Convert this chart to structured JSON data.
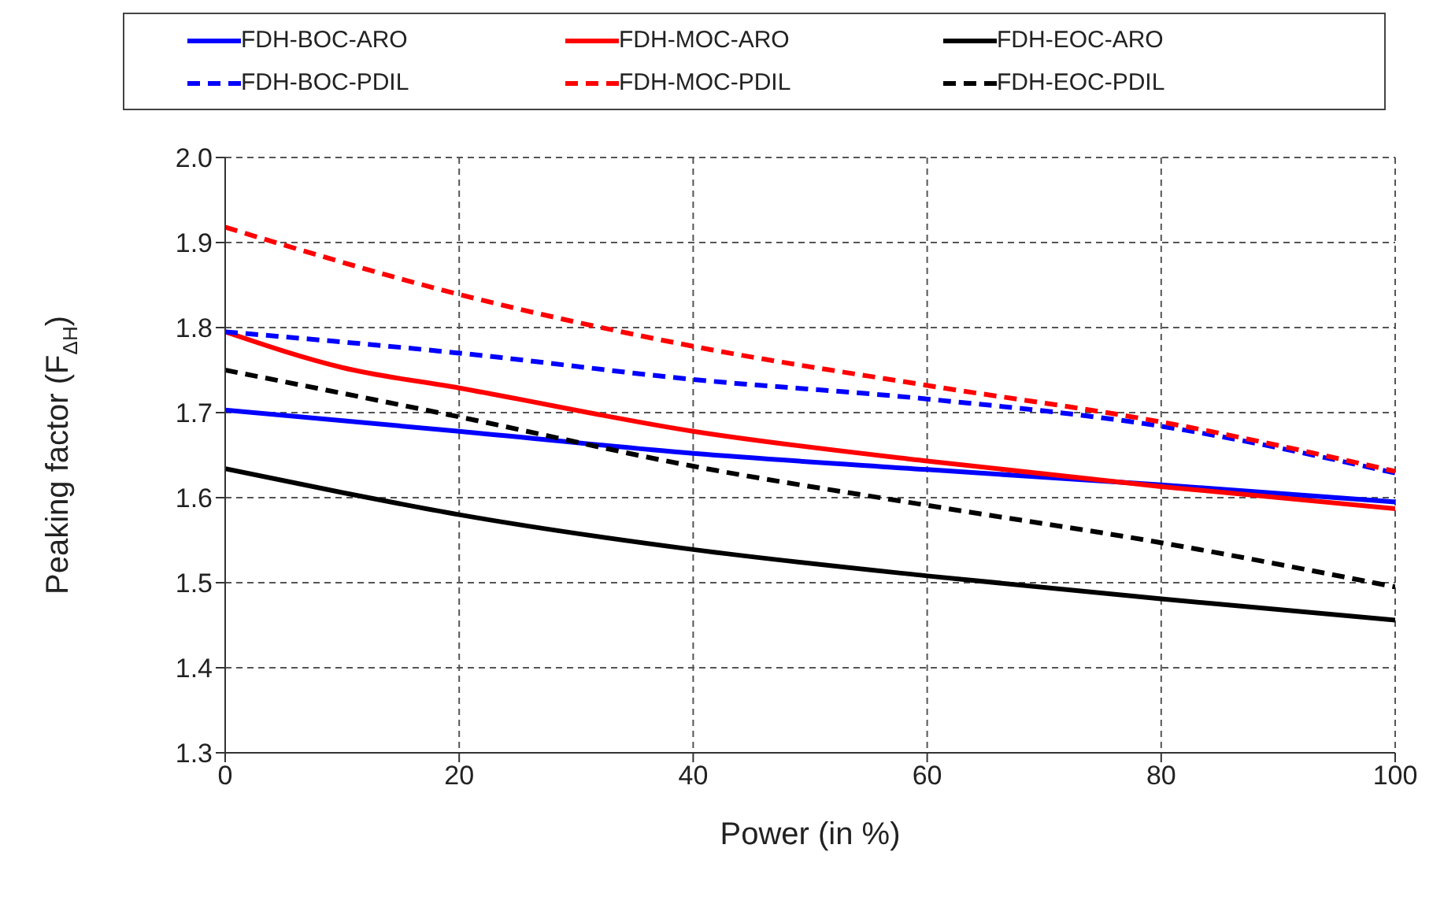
{
  "chart_data": {
    "type": "line",
    "xlabel": "Power (in %)",
    "ylabel": "Peaking factor (F$_{ΔH}$)",
    "xlim": [
      0,
      100
    ],
    "xticks": [
      0,
      20,
      40,
      60,
      80,
      100
    ],
    "ylim": [
      1.3,
      2.0
    ],
    "yticks": [
      1.3,
      1.4,
      1.5,
      1.6,
      1.7,
      1.8,
      1.9,
      {
        "value": 2,
        "label": "2.0"
      }
    ],
    "grid": true,
    "legend": "top",
    "marker": "none",
    "series": [
      {
        "name": "FDH-BOC-ARO",
        "color": "#0000ff",
        "line_style": "solid",
        "x": [
          0,
          20,
          40,
          60,
          80,
          100
        ],
        "values": [
          1.703,
          1.678,
          1.652,
          1.633,
          1.615,
          1.595
        ]
      },
      {
        "name": "FDH-MOC-ARO",
        "color": "#ff0000",
        "line_style": "solid",
        "x": [
          0,
          10,
          20,
          40,
          60,
          80,
          100
        ],
        "values": [
          1.795,
          1.753,
          1.729,
          1.678,
          1.643,
          1.613,
          1.587
        ]
      },
      {
        "name": "FDH-EOC-ARO",
        "color": "#000000",
        "line_style": "solid",
        "x": [
          0,
          10,
          20,
          40,
          60,
          80,
          100
        ],
        "values": [
          1.634,
          1.606,
          1.58,
          1.539,
          1.508,
          1.481,
          1.456
        ]
      },
      {
        "name": "FDH-BOC-PDIL",
        "color": "#0000ff",
        "line_style": "dashed",
        "x": [
          0,
          20,
          40,
          60,
          80,
          100
        ],
        "values": [
          1.795,
          1.77,
          1.739,
          1.716,
          1.684,
          1.629
        ]
      },
      {
        "name": "FDH-MOC-PDIL",
        "color": "#ff0000",
        "line_style": "dashed",
        "x": [
          0,
          20,
          40,
          60,
          80,
          100
        ],
        "values": [
          1.918,
          1.839,
          1.778,
          1.732,
          1.689,
          1.631
        ]
      },
      {
        "name": "FDH-EOC-PDIL",
        "color": "#000000",
        "line_style": "dashed",
        "x": [
          0,
          20,
          40,
          60,
          80,
          100
        ],
        "values": [
          1.75,
          1.695,
          1.637,
          1.591,
          1.547,
          1.495
        ]
      }
    ]
  }
}
